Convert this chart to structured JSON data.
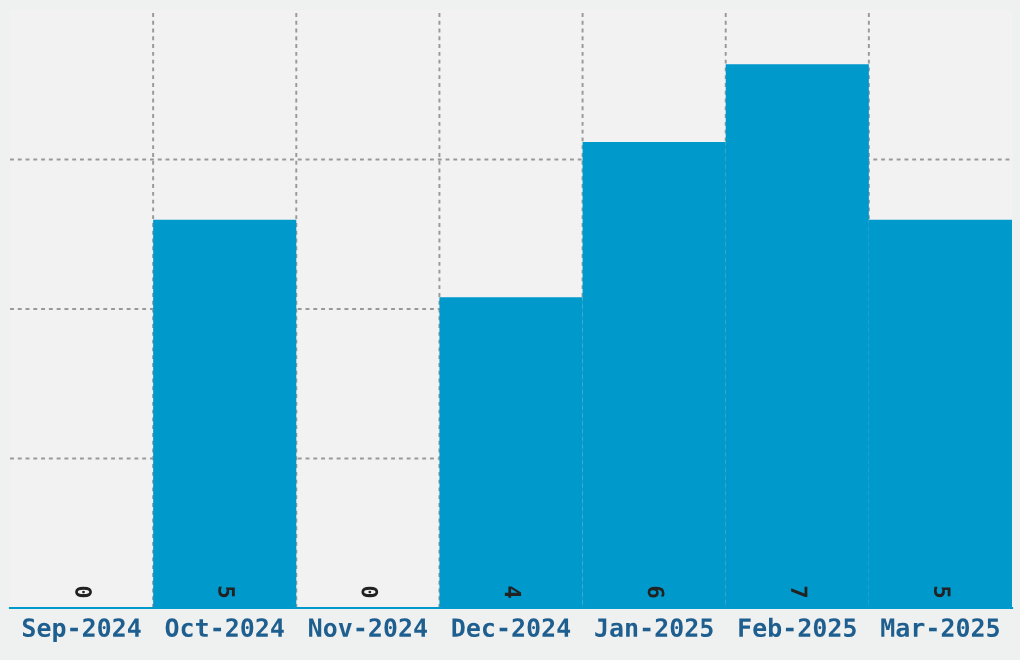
{
  "chart_data": {
    "type": "bar",
    "categories": [
      "Sep-2024",
      "Oct-2024",
      "Nov-2024",
      "Dec-2024",
      "Jan-2025",
      "Feb-2025",
      "Mar-2025"
    ],
    "values": [
      0,
      5,
      0,
      4,
      6,
      7,
      5
    ],
    "color": "#0099cc",
    "ylim": [
      0,
      7.7
    ],
    "yticks": [
      {
        "value": 1.925,
        "label": null
      },
      {
        "value": 3.85,
        "label": null
      },
      {
        "value": 5.775,
        "label": null
      }
    ],
    "tick_labels": "x",
    "grid": true,
    "data_labels": true
  }
}
